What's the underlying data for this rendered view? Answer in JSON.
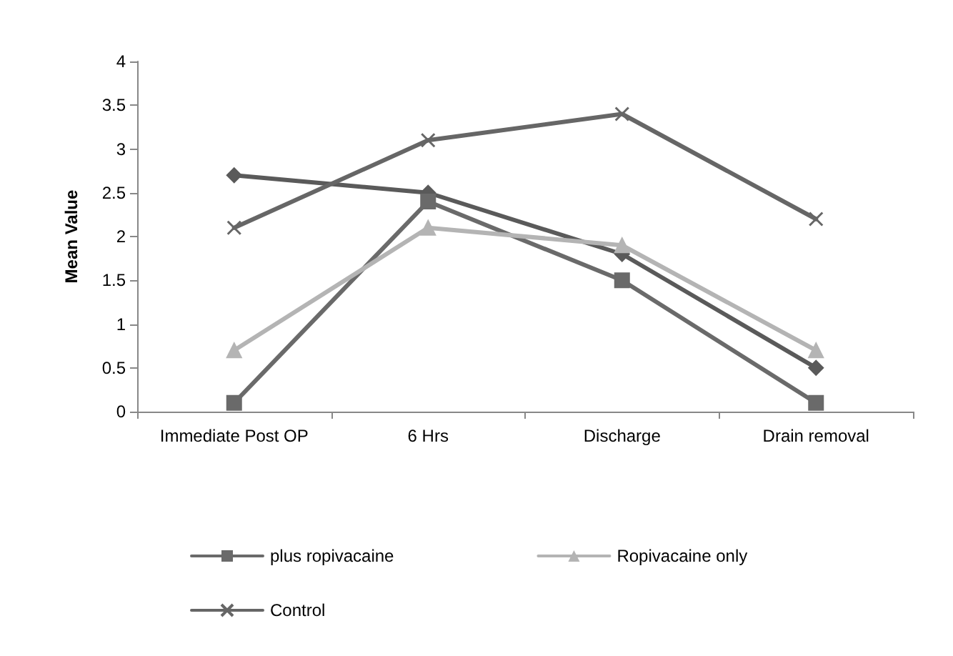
{
  "chart_data": {
    "type": "line",
    "ylabel": "Mean Value",
    "categories": [
      "Immediate Post OP",
      "6 Hrs",
      "Discharge",
      "Drain removal"
    ],
    "series": [
      {
        "color": "#5a5a5a",
        "marker": "diamond",
        "values": [
          2.7,
          2.5,
          1.8,
          0.5
        ]
      },
      {
        "name": "plus ropivacaine",
        "color": "#6a6a6a",
        "marker": "square",
        "values": [
          0.1,
          2.4,
          1.5,
          0.1
        ]
      },
      {
        "name": "Ropivacaine only",
        "color": "#b4b4b4",
        "marker": "triangle",
        "values": [
          0.7,
          2.1,
          1.9,
          0.7
        ]
      },
      {
        "name": "Control",
        "color": "#666666",
        "marker": "cross",
        "values": [
          2.1,
          3.1,
          3.4,
          2.2
        ]
      }
    ],
    "ylim": [
      0,
      4
    ],
    "yticks": [
      0,
      0.5,
      1,
      1.5,
      2,
      2.5,
      3,
      3.5,
      4
    ],
    "grid": false,
    "legend": "bottom"
  }
}
